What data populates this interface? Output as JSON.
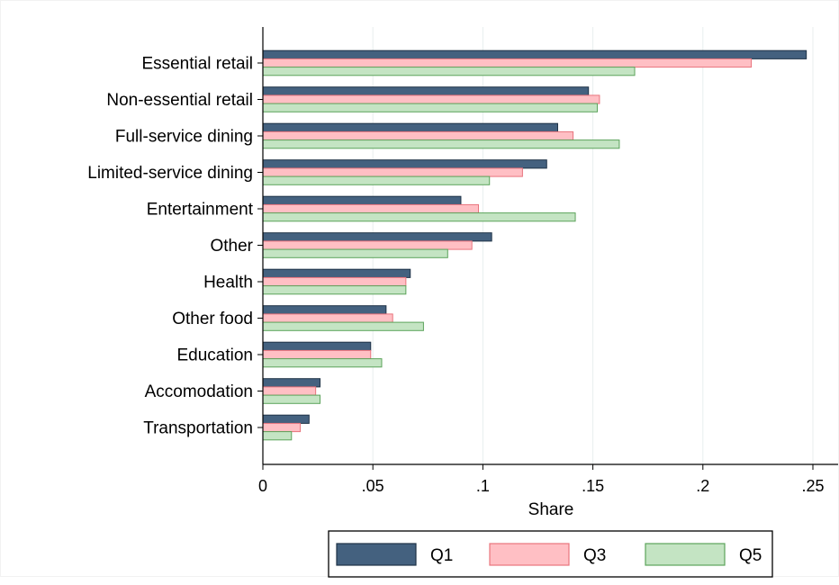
{
  "chart_data": {
    "type": "bar",
    "orientation": "horizontal",
    "categories": [
      "Essential retail",
      "Non-essential retail",
      "Full-service dining",
      "Limited-service dining",
      "Entertainment",
      "Other",
      "Health",
      "Other food",
      "Education",
      "Accomodation",
      "Transportation"
    ],
    "series": [
      {
        "name": "Q1",
        "color": "#44617f",
        "values": [
          0.247,
          0.148,
          0.134,
          0.129,
          0.09,
          0.104,
          0.067,
          0.056,
          0.049,
          0.026,
          0.021
        ]
      },
      {
        "name": "Q3",
        "color": "#ffbfc4",
        "stroke": "#e8747d",
        "values": [
          0.222,
          0.153,
          0.141,
          0.118,
          0.098,
          0.095,
          0.065,
          0.059,
          0.049,
          0.024,
          0.017
        ]
      },
      {
        "name": "Q5",
        "color": "#c4e4c3",
        "stroke": "#5ca35b",
        "values": [
          0.169,
          0.152,
          0.162,
          0.103,
          0.142,
          0.084,
          0.065,
          0.073,
          0.054,
          0.026,
          0.013
        ]
      }
    ],
    "xlabel": "Share",
    "ylabel": "",
    "xlim": [
      0,
      0.255
    ],
    "xticks": [
      0,
      0.05,
      0.1,
      0.15,
      0.2,
      0.25
    ],
    "xtick_labels": [
      "0",
      ".05",
      ".1",
      ".15",
      ".2",
      ".25"
    ],
    "grid": true,
    "grid_color": "#e8eeee",
    "legend_position": "bottom"
  }
}
